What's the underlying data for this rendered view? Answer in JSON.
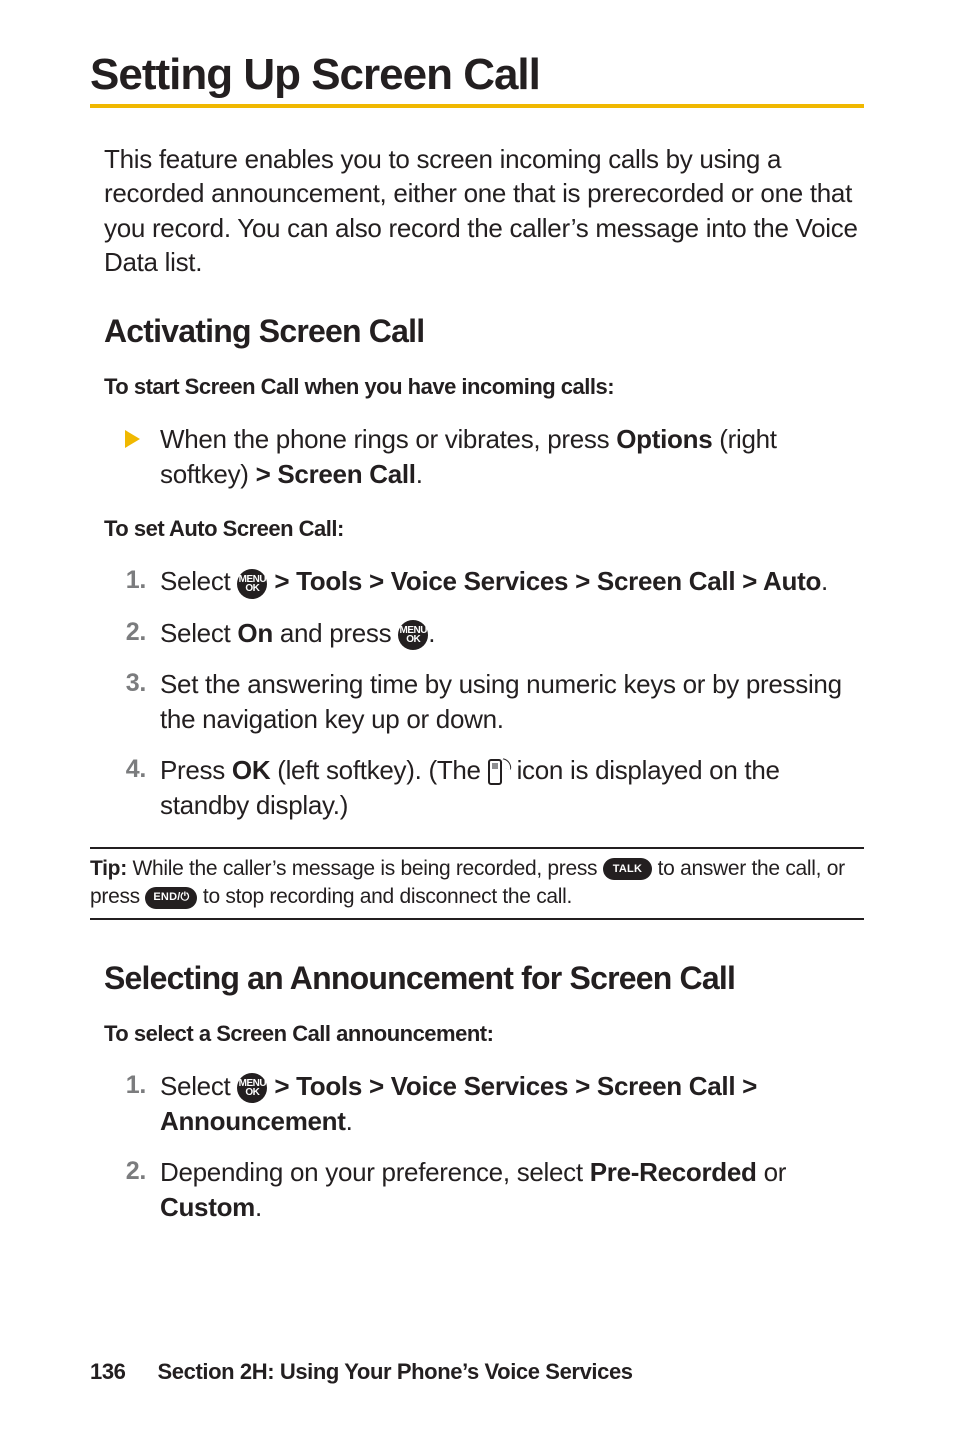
{
  "colors": {
    "text": "#231f20",
    "accent_yellow": "#f0b800",
    "marker_grey": "#7b7c7e",
    "pill_bg": "#231f20",
    "pill_fg": "#ffffff",
    "background": "#ffffff"
  },
  "typography": {
    "h1_size": 44,
    "h2_size": 32,
    "body_size": 26,
    "lead_size": 22,
    "tip_size": 21,
    "footer_size": 22
  },
  "h1": "Setting Up Screen Call",
  "intro": "This feature enables you to screen incoming calls by using a recorded announcement, either one that is prerecorded or one that you record. You can also record the caller’s message into the Voice Data list.",
  "section1": {
    "title": "Activating Screen Call",
    "lead1": "To start Screen Call when you have incoming calls:",
    "bullet_pre": "When the phone rings or vibrates, press ",
    "bullet_opt": "Options",
    "bullet_mid": " (right softkey) ",
    "bullet_path": "> Screen Call",
    "bullet_end": ".",
    "lead2": "To set Auto Screen Call:",
    "steps": {
      "s1_pre": "Select ",
      "s1_path": " > Tools > Voice Services > Screen Call > Auto",
      "s1_end": ".",
      "s2_pre": "Select ",
      "s2_on": "On",
      "s2_mid": " and press ",
      "s2_end": ".",
      "s3": "Set the answering time by using numeric keys or by pressing the navigation key up or down.",
      "s4_pre": "Press ",
      "s4_ok": "OK",
      "s4_mid": " (left softkey). (The ",
      "s4_post": " icon is displayed on the standby display.)"
    }
  },
  "tip": {
    "label": "Tip:",
    "t1": " While the caller’s message is being recorded, press ",
    "t2": " to answer the call, or press ",
    "t3": " to stop recording and disconnect the call."
  },
  "section2": {
    "title": "Selecting an Announcement for Screen Call",
    "lead": "To select a Screen Call announcement:",
    "steps": {
      "s1_pre": "Select ",
      "s1_path": " > Tools > Voice Services > Screen Call > Announcement",
      "s1_end": ".",
      "s2_pre": "Depending on your preference, select ",
      "s2_a": "Pre-Recorded",
      "s2_mid": " or ",
      "s2_b": "Custom",
      "s2_end": "."
    }
  },
  "pill_labels": {
    "menu_top": "MENU",
    "menu_bot": "OK",
    "talk": "TALK",
    "end": "END/",
    "end_sym": "⏻"
  },
  "footer": {
    "page": "136",
    "text": "Section 2H: Using Your Phone’s Voice Services"
  }
}
